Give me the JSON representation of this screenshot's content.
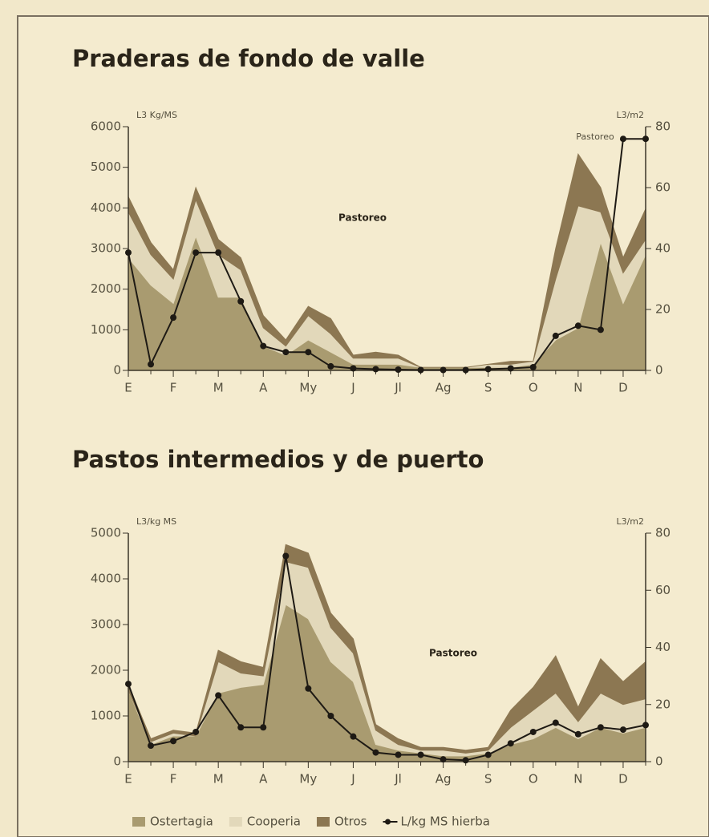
{
  "chart_data": [
    {
      "type": "area",
      "title": "Praderas de fondo de valle",
      "ylabel": "L3 Kg/MS",
      "y2label": "L3/m2",
      "annotations": [
        "Pastoreo",
        "Pastoreo"
      ],
      "categories": [
        "E",
        null,
        "F",
        null,
        "M",
        null,
        "A",
        null,
        "My",
        null,
        "J",
        null,
        "Jl",
        null,
        "Ag",
        null,
        "S",
        null,
        "O",
        null,
        "N",
        null,
        "D",
        null
      ],
      "ylim": [
        0,
        6000
      ],
      "yticks": [
        0,
        1000,
        2000,
        3000,
        4000,
        5000,
        6000
      ],
      "y2lim": [
        0,
        80
      ],
      "y2ticks": [
        0,
        20,
        40,
        60,
        80
      ],
      "series": [
        {
          "color": "#a99b70",
          "axis": "y2",
          "values": [
            37,
            28,
            22,
            44,
            24,
            24,
            8,
            5,
            10,
            6,
            2,
            2,
            2,
            1,
            1,
            1,
            1,
            1,
            2,
            10,
            14,
            42,
            22,
            38
          ]
        },
        {
          "color": "#e2d8ba",
          "axis": "y2",
          "values": [
            15,
            10,
            8,
            12,
            14,
            9,
            6,
            3,
            8,
            6,
            2,
            2,
            2,
            0,
            0,
            0,
            1,
            1,
            1,
            20,
            40,
            10,
            10,
            5
          ]
        },
        {
          "color": "#8c7752",
          "axis": "y2",
          "values": [
            5,
            4,
            3,
            4,
            5,
            4,
            4,
            2,
            3,
            5,
            1,
            2,
            1,
            0,
            0,
            0,
            0,
            1,
            0,
            10,
            17,
            8,
            5,
            10
          ]
        },
        {
          "type": "line",
          "color": "#1e1a14",
          "values": [
            2900,
            150,
            1300,
            2900,
            2900,
            1700,
            600,
            450,
            450,
            100,
            50,
            30,
            20,
            10,
            10,
            10,
            30,
            50,
            80,
            850,
            1100,
            1000,
            5700,
            5700
          ]
        }
      ]
    },
    {
      "type": "area",
      "title": "Pastos intermedios y de puerto",
      "ylabel": "L3/kg MS",
      "y2label": "L3/m2",
      "annotations": [
        "Pastoreo"
      ],
      "categories": [
        "E",
        null,
        "F",
        null,
        "M",
        null,
        "A",
        null,
        "My",
        null,
        "J",
        null,
        "Jl",
        null,
        "Ag",
        null,
        "S",
        null,
        "O",
        null,
        "N",
        null,
        "D",
        null
      ],
      "ylim": [
        0,
        5000
      ],
      "yticks": [
        0,
        1000,
        2000,
        3000,
        4000,
        5000
      ],
      "y2lim": [
        0,
        80
      ],
      "y2ticks": [
        0,
        20,
        40,
        60,
        80
      ],
      "series": [
        {
          "name": "Ostertagia",
          "color": "#a99b70",
          "axis": "y2",
          "values": [
            25,
            6,
            9,
            9,
            24,
            26,
            27,
            55,
            50,
            35,
            28,
            6,
            4,
            3,
            2,
            2,
            3,
            6,
            8,
            12,
            8,
            12,
            10,
            12
          ]
        },
        {
          "name": "Cooperia",
          "color": "#e2d8ba",
          "axis": "y2",
          "values": [
            0,
            1,
            1,
            0,
            11,
            5,
            3,
            15,
            18,
            12,
            10,
            5,
            2,
            1,
            2,
            1,
            1,
            6,
            10,
            12,
            6,
            12,
            10,
            10
          ]
        },
        {
          "name": "Otros",
          "color": "#8c7752",
          "axis": "y2",
          "values": [
            2,
            1,
            1,
            1,
            4,
            4,
            3,
            6,
            5,
            5,
            5,
            2,
            2,
            1,
            1,
            1,
            1,
            6,
            8,
            13,
            5,
            12,
            8,
            13
          ]
        },
        {
          "name": "L/kg MS hierba",
          "type": "line",
          "color": "#1e1a14",
          "values": [
            1700,
            350,
            450,
            650,
            1450,
            750,
            750,
            4500,
            1600,
            1000,
            550,
            200,
            150,
            150,
            50,
            30,
            150,
            400,
            650,
            850,
            600,
            750,
            700,
            800
          ]
        }
      ]
    }
  ]
}
